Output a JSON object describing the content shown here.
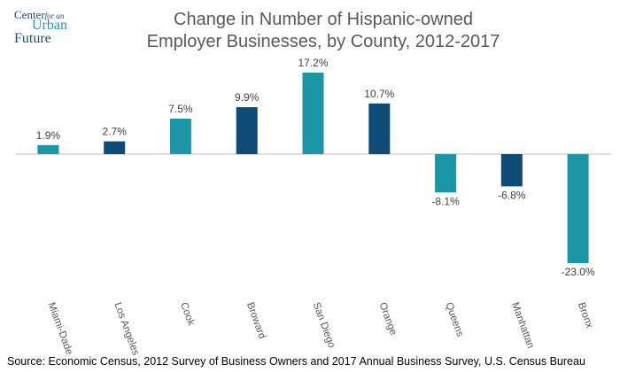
{
  "logo": {
    "line1": "Center",
    "line1_small": "for an",
    "line2": "Urban",
    "line3": "Future"
  },
  "chart_data": {
    "type": "bar",
    "title_line1": "Change in Number of Hispanic-owned",
    "title_line2": "Employer Businesses, by County, 2012-2017",
    "categories": [
      "Miami-Dade",
      "Los Angeles",
      "Cook",
      "Broward",
      "San Diego",
      "Orange",
      "Queens",
      "Manhattan",
      "Bronx"
    ],
    "values": [
      1.9,
      2.7,
      7.5,
      9.9,
      17.2,
      10.7,
      -8.1,
      -6.8,
      -23.0
    ],
    "data_labels": [
      "1.9%",
      "2.7%",
      "7.5%",
      "9.9%",
      "17.2%",
      "10.7%",
      "-8.1%",
      "-6.8%",
      "-23.0%"
    ],
    "bar_colors": [
      "#1a96a7",
      "#0f4c75",
      "#1a96a7",
      "#0f4c75",
      "#1a96a7",
      "#0f4c75",
      "#1a96a7",
      "#0f4c75",
      "#1a96a7"
    ],
    "ylim": [
      -23.0,
      17.2
    ],
    "grid": false,
    "legend": "none",
    "source": "Source: Economic Census, 2012 Survey of Business Owners and 2017 Annual Business Survey, U.S. Census Bureau"
  }
}
